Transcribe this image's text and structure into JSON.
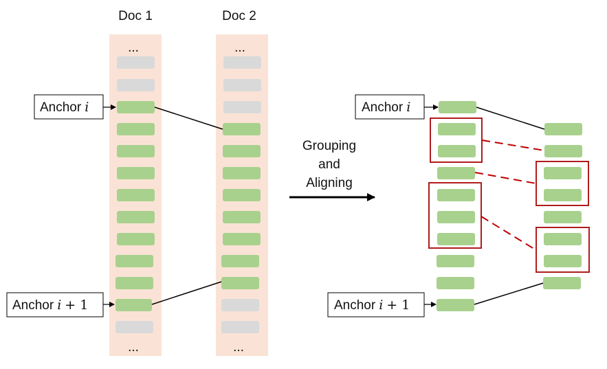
{
  "doc1_title": "Doc 1",
  "doc2_title": "Doc 2",
  "ellipsis": "...",
  "anchor_word": "Anchor",
  "anchor_var": "i",
  "anchor_plus": "+ 1",
  "process_label": [
    "Grouping",
    "and",
    "Aligning"
  ],
  "colors": {
    "column_bg": "#fae3d6",
    "segment_green": "#a8d18d",
    "segment_gray": "#d9d9d9",
    "group_box": "#b01c1c",
    "alignment_dash": "#c00000",
    "anchor_line": "#000000"
  }
}
